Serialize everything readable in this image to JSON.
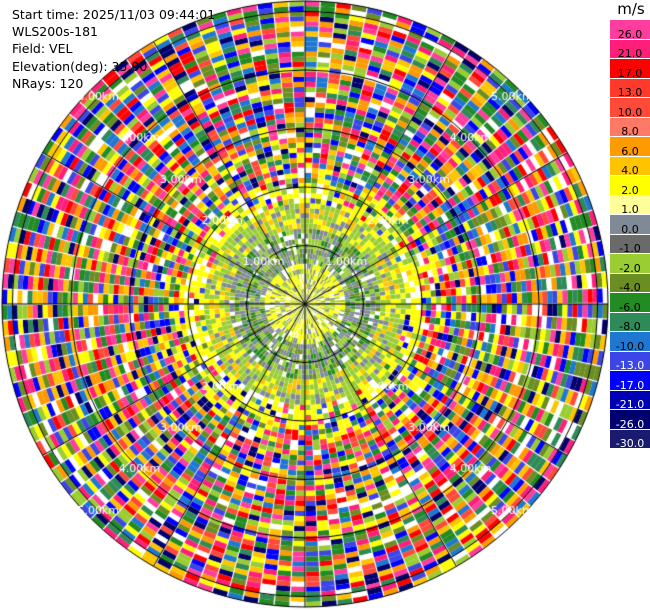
{
  "info": {
    "start_time": "Start time: 2025/11/03 09:44:01",
    "station": "WLS200s-181",
    "field": "Field: VEL",
    "elevation": "Elevation(deg): 35.00",
    "nrays": "NRays: 120"
  },
  "colorbar": {
    "unit": "m/s",
    "bins": [
      {
        "label": "26.0",
        "color": "#ff3d9e"
      },
      {
        "label": "21.0",
        "color": "#ff1f7a"
      },
      {
        "label": "17.0",
        "color": "#ff0000"
      },
      {
        "label": "13.0",
        "color": "#ff3a2a"
      },
      {
        "label": "10.0",
        "color": "#ff4a3a"
      },
      {
        "label": "8.0",
        "color": "#ff7a66"
      },
      {
        "label": "6.0",
        "color": "#ff9a00"
      },
      {
        "label": "4.0",
        "color": "#ffc400"
      },
      {
        "label": "2.0",
        "color": "#ffff00"
      },
      {
        "label": "1.0",
        "color": "#ffff99"
      },
      {
        "label": "0.0",
        "color": "#7f8a96"
      },
      {
        "label": "-1.0",
        "color": "#6a6a6a"
      },
      {
        "label": "-2.0",
        "color": "#9acd32"
      },
      {
        "label": "-4.0",
        "color": "#6b8e23"
      },
      {
        "label": "-6.0",
        "color": "#228b22"
      },
      {
        "label": "-8.0",
        "color": "#2e8b57"
      },
      {
        "label": "-10.0",
        "color": "#1e78d2"
      },
      {
        "label": "-13.0",
        "color": "#3c46e6"
      },
      {
        "label": "-17.0",
        "color": "#0000ff"
      },
      {
        "label": "-21.0",
        "color": "#0000b4"
      },
      {
        "label": "-26.0",
        "color": "#00006e"
      },
      {
        "label": "-30.0",
        "color": "#1a1a6e"
      }
    ]
  },
  "map": {
    "range_rings": [
      {
        "label": "1.00km",
        "offset_deg": [
          -45,
          45
        ]
      },
      {
        "label": "2.00km",
        "offset_deg": [
          -45,
          45,
          135,
          225
        ]
      },
      {
        "label": "3.00km",
        "offset_deg": [
          -45,
          45,
          135,
          225
        ]
      },
      {
        "label": "4.00km",
        "offset_deg": [
          -45,
          45,
          135,
          225
        ]
      },
      {
        "label": "5.00km",
        "offset_deg": [
          -45,
          45,
          135,
          225
        ]
      }
    ]
  }
}
